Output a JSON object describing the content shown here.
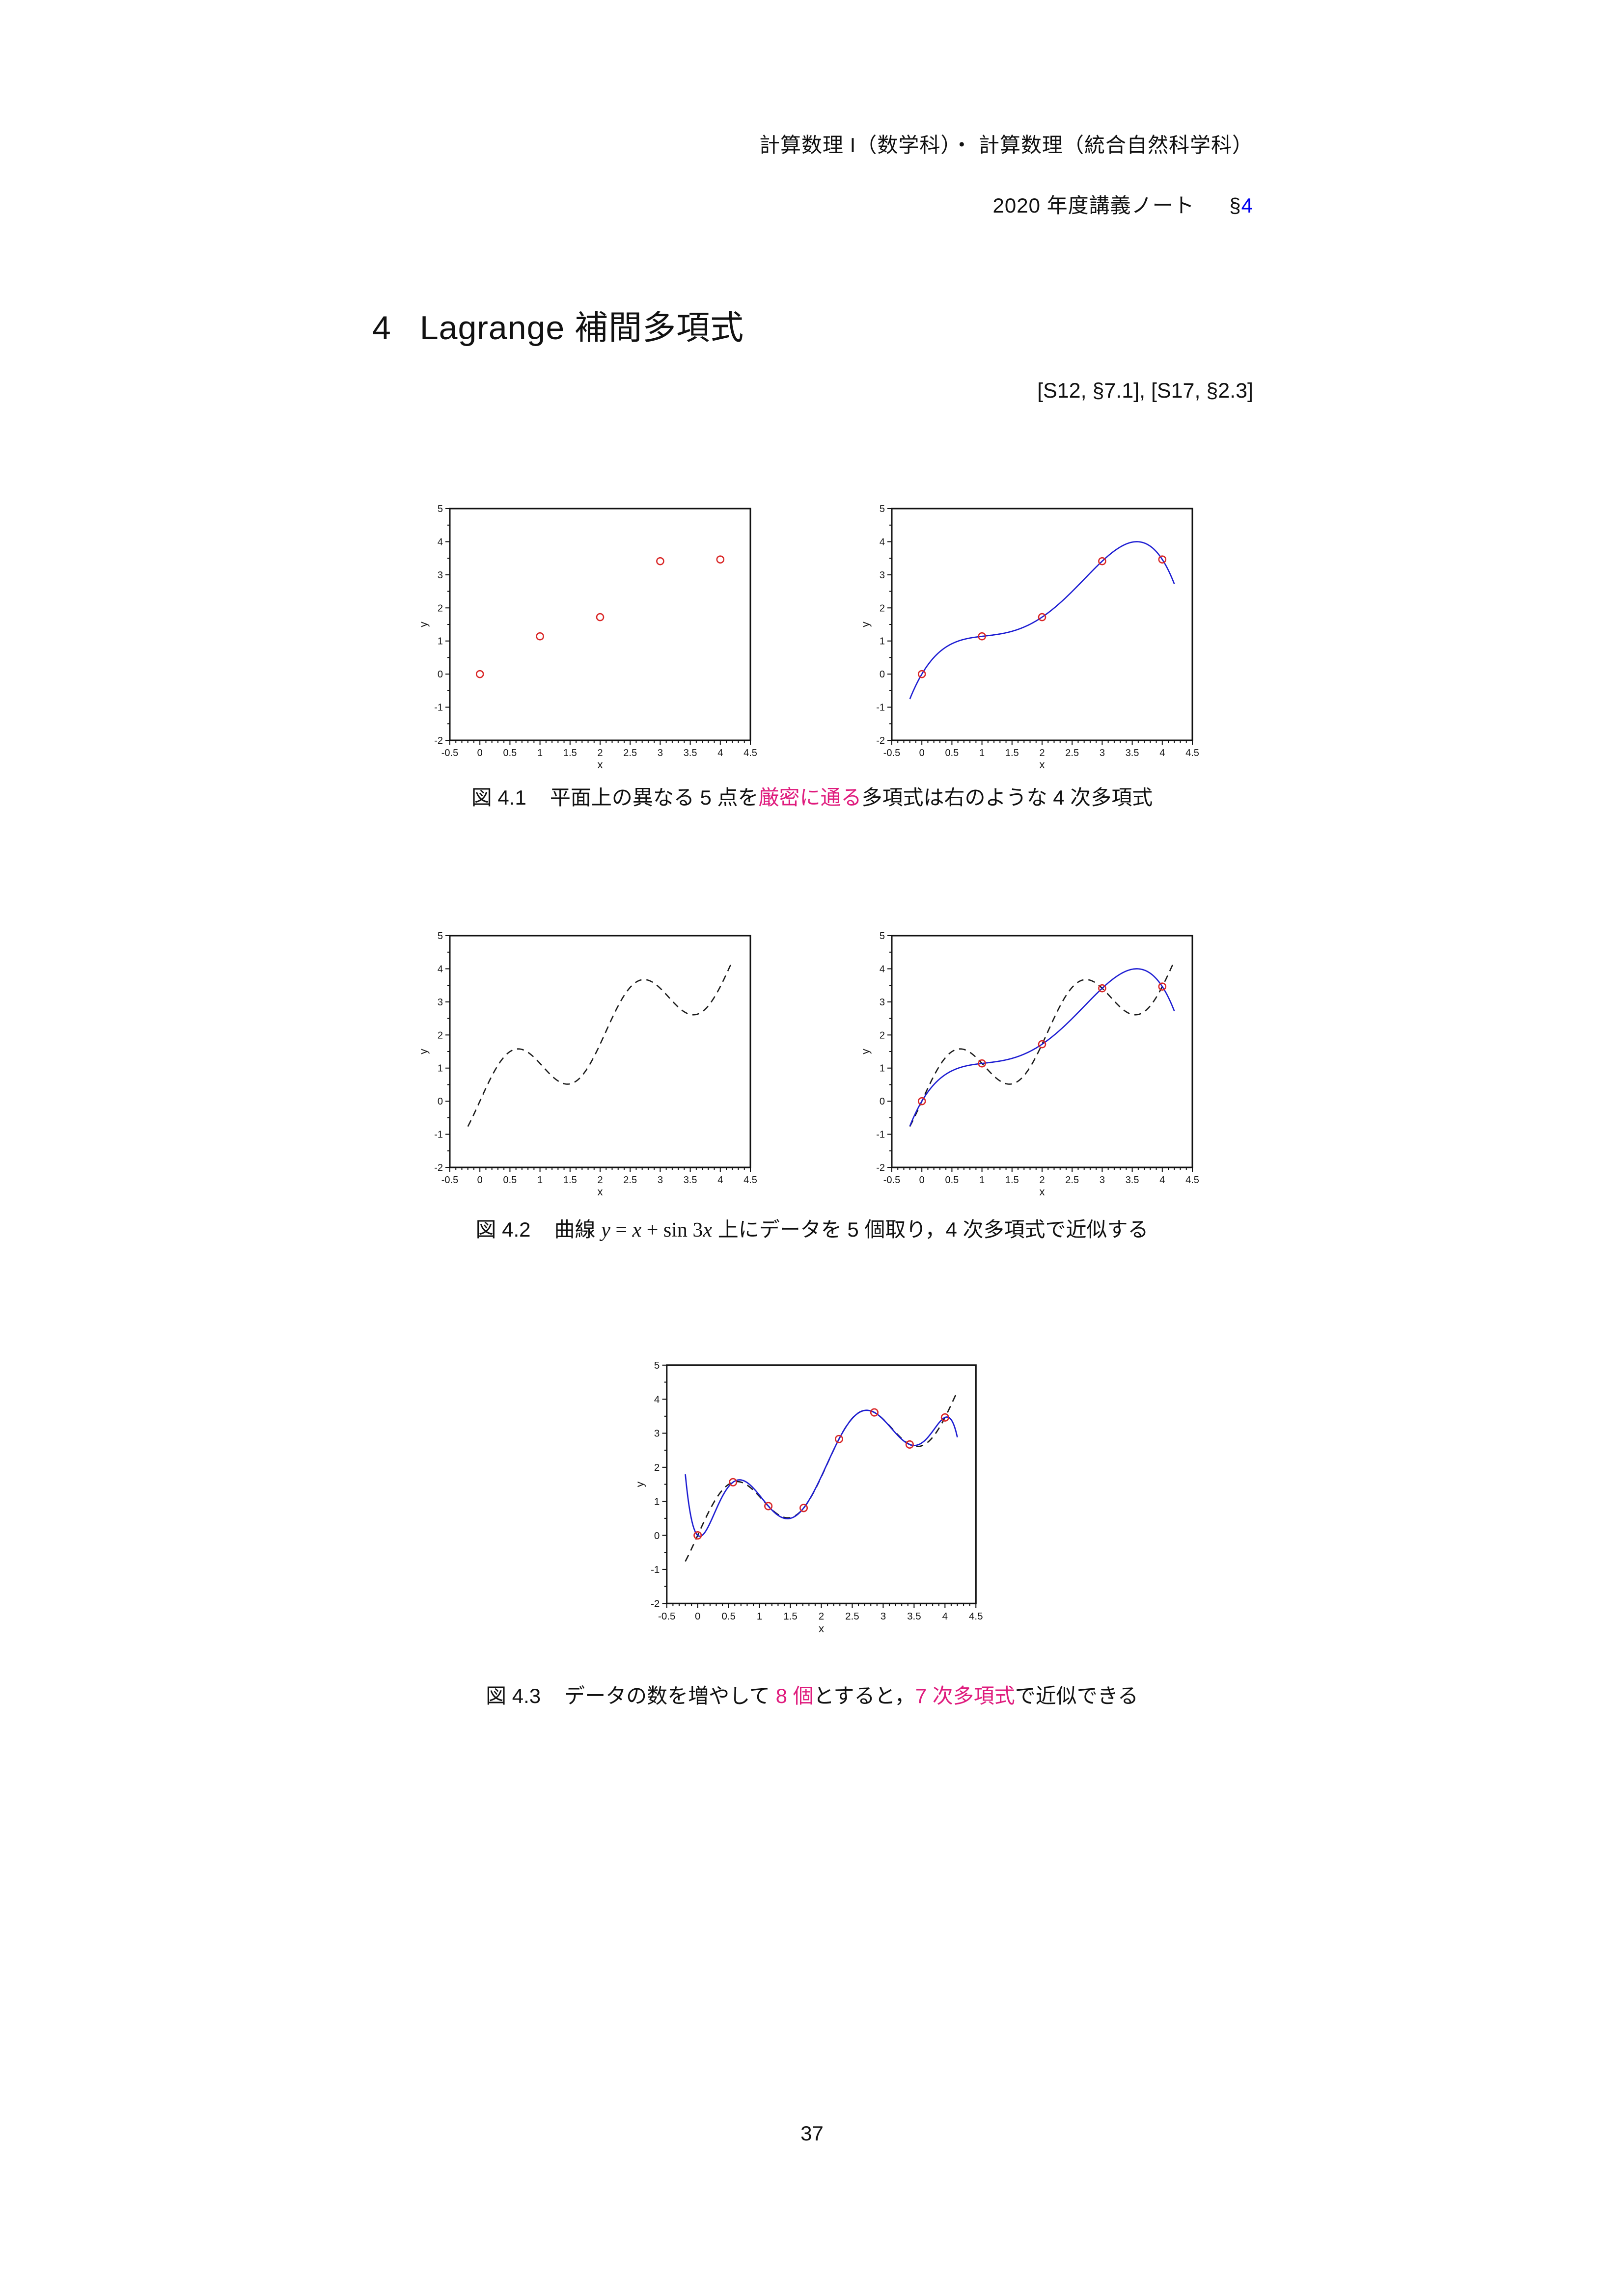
{
  "header": {
    "course_line": "計算数理 I（数学科）・ 計算数理（統合自然科学科）",
    "note_line_text": "2020 年度講義ノート",
    "note_section_mark": "§",
    "note_section_number": "4"
  },
  "section": {
    "number": "4",
    "title": "Lagrange 補間多項式"
  },
  "reference": "[S12, §7.1], [S17, §2.3]",
  "captions": [
    {
      "name": "figure-4-1-caption",
      "segments": [
        {
          "text": "図 4.1",
          "style": "label"
        },
        {
          "text": "　平面上の異なる 5 点を",
          "style": "plain"
        },
        {
          "text": "厳密に通る",
          "style": "accent"
        },
        {
          "text": "多項式は右のような 4 次多項式",
          "style": "plain"
        }
      ]
    },
    {
      "name": "figure-4-2-caption",
      "segments": [
        {
          "text": "図 4.2",
          "style": "label"
        },
        {
          "text": "　曲線 ",
          "style": "plain"
        },
        {
          "text": "y",
          "style": "math-italic"
        },
        {
          "text": " = ",
          "style": "math"
        },
        {
          "text": "x",
          "style": "math-italic"
        },
        {
          "text": " + sin 3",
          "style": "math"
        },
        {
          "text": "x",
          "style": "math-italic"
        },
        {
          "text": " 上にデータを 5 個取り，4 次多項式で近似する",
          "style": "plain"
        }
      ]
    },
    {
      "name": "figure-4-3-caption",
      "segments": [
        {
          "text": "図 4.3",
          "style": "label"
        },
        {
          "text": "　データの数を増やして ",
          "style": "plain"
        },
        {
          "text": "8 個",
          "style": "accent"
        },
        {
          "text": "とすると，",
          "style": "plain"
        },
        {
          "text": "7 次多項式",
          "style": "accent"
        },
        {
          "text": "で近似できる",
          "style": "plain"
        }
      ]
    }
  ],
  "page_number": "37",
  "colors": {
    "accent_magenta": "#df1b7d",
    "link_blue": "#0000ee",
    "curve_blue": "#1c1cd2",
    "point_red": "#d92626",
    "curve_black": "#1a1a1a"
  },
  "chart_data": [
    {
      "id": "fig4_1_left",
      "type": "scatter",
      "title": "",
      "xlabel": "x",
      "ylabel": "y",
      "xlim": [
        -0.5,
        4.5
      ],
      "ylim": [
        -2,
        5
      ],
      "x_major_step": 0.5,
      "x_minor_step": 0.1,
      "y_major_step": 1,
      "y_minor_step": 0.5,
      "grid": false,
      "series": [
        {
          "name": "data points on y = x + sin 3x (5 points)",
          "type": "scatter",
          "color": "#d92626",
          "points": [
            [
              0,
              0
            ],
            [
              1,
              1.141
            ],
            [
              2,
              1.721
            ],
            [
              3,
              3.411
            ],
            [
              4,
              3.463
            ]
          ]
        }
      ]
    },
    {
      "id": "fig4_1_right",
      "type": "line",
      "title": "",
      "xlabel": "x",
      "ylabel": "y",
      "xlim": [
        -0.5,
        4.5
      ],
      "ylim": [
        -2,
        5
      ],
      "x_major_step": 0.5,
      "x_minor_step": 0.1,
      "y_major_step": 1,
      "y_minor_step": 0.5,
      "grid": false,
      "series": [
        {
          "name": "degree-4 Lagrange interpolating polynomial",
          "type": "lagrange",
          "color": "#1c1cd2",
          "dashed": false,
          "xrange": [
            -0.2,
            4.2
          ],
          "nodes": [
            [
              0,
              0
            ],
            [
              1,
              1.141
            ],
            [
              2,
              1.721
            ],
            [
              3,
              3.411
            ],
            [
              4,
              3.463
            ]
          ]
        },
        {
          "name": "data points (5 points)",
          "type": "scatter",
          "color": "#d92626",
          "points": [
            [
              0,
              0
            ],
            [
              1,
              1.141
            ],
            [
              2,
              1.721
            ],
            [
              3,
              3.411
            ],
            [
              4,
              3.463
            ]
          ]
        }
      ]
    },
    {
      "id": "fig4_2_left",
      "type": "line",
      "title": "",
      "xlabel": "x",
      "ylabel": "y",
      "xlim": [
        -0.5,
        4.5
      ],
      "ylim": [
        -2,
        5
      ],
      "x_major_step": 0.5,
      "x_minor_step": 0.1,
      "y_major_step": 1,
      "y_minor_step": 0.5,
      "grid": false,
      "series": [
        {
          "name": "y = x + sin 3x",
          "type": "fn",
          "fn": "x+sin(3x)",
          "color": "#1a1a1a",
          "dashed": true,
          "xrange": [
            -0.2,
            4.2
          ]
        }
      ]
    },
    {
      "id": "fig4_2_right",
      "type": "line",
      "title": "",
      "xlabel": "x",
      "ylabel": "y",
      "xlim": [
        -0.5,
        4.5
      ],
      "ylim": [
        -2,
        5
      ],
      "x_major_step": 0.5,
      "x_minor_step": 0.1,
      "y_major_step": 1,
      "y_minor_step": 0.5,
      "grid": false,
      "series": [
        {
          "name": "y = x + sin 3x",
          "type": "fn",
          "fn": "x+sin(3x)",
          "color": "#1a1a1a",
          "dashed": true,
          "xrange": [
            -0.2,
            4.2
          ]
        },
        {
          "name": "degree-4 Lagrange interpolating polynomial",
          "type": "lagrange",
          "color": "#1c1cd2",
          "dashed": false,
          "xrange": [
            -0.2,
            4.2
          ],
          "nodes": [
            [
              0,
              0
            ],
            [
              1,
              1.141
            ],
            [
              2,
              1.721
            ],
            [
              3,
              3.411
            ],
            [
              4,
              3.463
            ]
          ]
        },
        {
          "name": "data points (5 points)",
          "type": "scatter",
          "color": "#d92626",
          "points": [
            [
              0,
              0
            ],
            [
              1,
              1.141
            ],
            [
              2,
              1.721
            ],
            [
              3,
              3.411
            ],
            [
              4,
              3.463
            ]
          ]
        }
      ]
    },
    {
      "id": "fig4_3",
      "type": "line",
      "title": "",
      "xlabel": "x",
      "ylabel": "y",
      "xlim": [
        -0.5,
        4.5
      ],
      "ylim": [
        -2,
        5
      ],
      "x_major_step": 0.5,
      "x_minor_step": 0.1,
      "y_major_step": 1,
      "y_minor_step": 0.5,
      "grid": false,
      "series": [
        {
          "name": "y = x + sin 3x",
          "type": "fn",
          "fn": "x+sin(3x)",
          "color": "#1a1a1a",
          "dashed": true,
          "xrange": [
            -0.2,
            4.2
          ]
        },
        {
          "name": "degree-7 Lagrange interpolating polynomial",
          "type": "lagrange",
          "color": "#1c1cd2",
          "dashed": false,
          "xrange": [
            -0.2,
            4.2
          ],
          "nodes": [
            [
              0,
              0
            ],
            [
              0.5714,
              1.5612
            ],
            [
              1.1429,
              0.8596
            ],
            [
              1.7143,
              0.8045
            ],
            [
              2.2857,
              2.8286
            ],
            [
              2.8571,
              3.6111
            ],
            [
              3.4286,
              2.6692
            ],
            [
              4,
              3.4634
            ]
          ]
        },
        {
          "name": "data points (8 points)",
          "type": "scatter",
          "color": "#d92626",
          "points": [
            [
              0,
              0
            ],
            [
              0.5714,
              1.5612
            ],
            [
              1.1429,
              0.8596
            ],
            [
              1.7143,
              0.8045
            ],
            [
              2.2857,
              2.8286
            ],
            [
              2.8571,
              3.6111
            ],
            [
              3.4286,
              2.6692
            ],
            [
              4,
              3.4634
            ]
          ]
        }
      ]
    }
  ]
}
